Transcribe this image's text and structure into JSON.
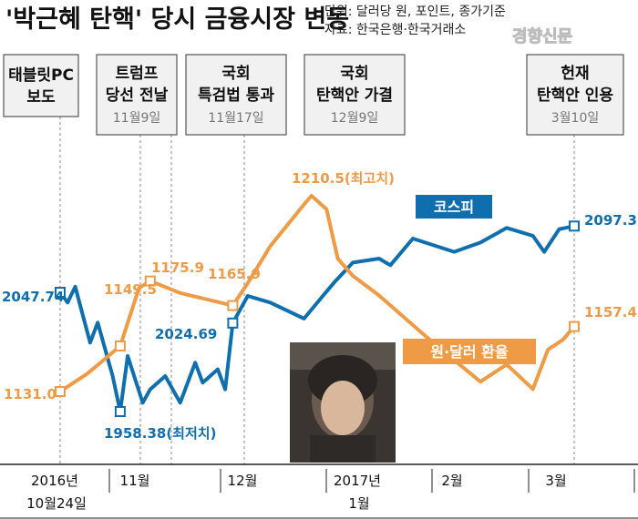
{
  "title": "'박근혜 탄핵' 당시 금융시장 변동",
  "source_units": "단위: 달러당 원, 포인트, 종가기준",
  "source": "자료: 한국은행·한국거래소",
  "watermark": "경향신문",
  "colors": {
    "kospi": "#0f6fae",
    "won": "#ef9a45",
    "box_bg": "#f1f1f1",
    "box_border": "#555555",
    "date_text": "#777777"
  },
  "events": [
    {
      "label1": "태블릿PC",
      "label2": "보도",
      "date": ""
    },
    {
      "label1": "트럼프",
      "label2": "당선 전날",
      "date": "11월9일"
    },
    {
      "label1": "국회",
      "label2": "특검법 통과",
      "date": "11월17일"
    },
    {
      "label1": "국회",
      "label2": "탄핵안 가결",
      "date": "12월9일"
    },
    {
      "label1": "헌재",
      "label2": "탄핵안 인용",
      "date": "3월10일"
    }
  ],
  "series_labels": {
    "kospi": "코스피",
    "won": "원·달러 환율"
  },
  "annotations": {
    "kospi_start": "2047.74",
    "kospi_min": "1958.38(최저치)",
    "kospi_dec9": "2024.69",
    "kospi_end": "2097.35",
    "won_start": "1131.0",
    "won_nov9": "1149.5",
    "won_nov17": "1175.9",
    "won_dec9": "1165.9",
    "won_max": "1210.5(최고치)",
    "won_end": "1157.4"
  },
  "x_axis": [
    {
      "line1": "2016년",
      "line2": "10월24일"
    },
    {
      "line1": "11월",
      "line2": ""
    },
    {
      "line1": "12월",
      "line2": ""
    },
    {
      "line1": "2017년",
      "line2": "1월"
    },
    {
      "line1": "2월",
      "line2": ""
    },
    {
      "line1": "3월",
      "line2": ""
    }
  ],
  "chart_data": [
    {
      "type": "line",
      "title": "'박근혜 탄핵' 당시 금융시장 변동",
      "series": [
        {
          "name": "코스피",
          "unit": "포인트",
          "x": [
            "2016-10-24",
            "2016-10-26",
            "2016-10-28",
            "2016-11-01",
            "2016-11-03",
            "2016-11-07",
            "2016-11-09",
            "2016-11-11",
            "2016-11-15",
            "2016-11-17",
            "2016-11-21",
            "2016-11-25",
            "2016-11-29",
            "2016-12-01",
            "2016-12-05",
            "2016-12-07",
            "2016-12-09",
            "2016-12-13",
            "2016-12-19",
            "2016-12-28",
            "2017-01-02",
            "2017-01-05",
            "2017-01-10",
            "2017-01-17",
            "2017-01-20",
            "2017-01-26",
            "2017-02-06",
            "2017-02-13",
            "2017-02-20",
            "2017-02-27",
            "2017-03-02",
            "2017-03-06",
            "2017-03-10"
          ],
          "values": [
            2047.74,
            2040,
            2052,
            2010,
            2025,
            1985,
            1958.38,
            2000,
            1965,
            1975,
            1985,
            1965,
            1995,
            1980,
            1990,
            1975,
            2024.69,
            2045,
            2040,
            2028,
            2045,
            2055,
            2070,
            2073,
            2068,
            2088,
            2078,
            2085,
            2096,
            2090,
            2078,
            2095,
            2097.35
          ]
        },
        {
          "name": "원·달러 환율",
          "unit": "달러당 원",
          "x": [
            "2016-10-24",
            "2016-10-31",
            "2016-11-04",
            "2016-11-09",
            "2016-11-14",
            "2016-11-17",
            "2016-11-25",
            "2016-12-09",
            "2016-12-13",
            "2016-12-19",
            "2016-12-28",
            "2016-12-30",
            "2017-01-03",
            "2017-01-06",
            "2017-01-10",
            "2017-01-17",
            "2017-02-01",
            "2017-02-13",
            "2017-02-20",
            "2017-02-27",
            "2017-03-03",
            "2017-03-07",
            "2017-03-10"
          ],
          "values": [
            1131.0,
            1138,
            1143,
            1149.5,
            1173,
            1175.9,
            1171,
            1165.9,
            1175,
            1190,
            1207,
            1210.5,
            1205,
            1185,
            1178,
            1170,
            1150,
            1135,
            1142,
            1132,
            1148,
            1152,
            1157.4
          ]
        }
      ]
    }
  ]
}
